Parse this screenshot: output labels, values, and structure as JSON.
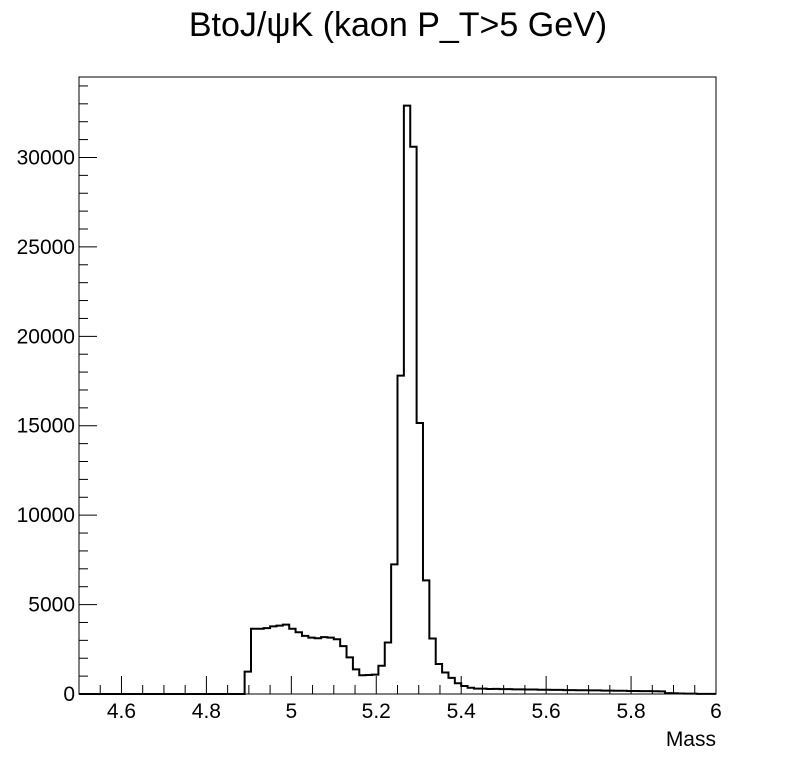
{
  "chart_data": {
    "type": "bar",
    "title": "BtoJ/ψK (kaon P_T>5 GeV)",
    "xlabel": "Mass",
    "ylabel": "",
    "xlim": [
      4.5,
      6.0
    ],
    "ylim": [
      0,
      34500
    ],
    "grid": false,
    "xticks": [
      "4.6",
      "4.8",
      "5",
      "5.2",
      "5.4",
      "5.6",
      "5.8",
      "6"
    ],
    "yticks": [
      "0",
      "5000",
      "10000",
      "15000",
      "20000",
      "25000",
      "30000"
    ],
    "bin_width": 0.015,
    "x_start": 4.5,
    "values": [
      0,
      0,
      0,
      0,
      0,
      0,
      0,
      0,
      0,
      0,
      0,
      0,
      0,
      0,
      0,
      0,
      0,
      0,
      0,
      0,
      0,
      0,
      0,
      0,
      0,
      0,
      1250,
      3650,
      3650,
      3680,
      3780,
      3820,
      3880,
      3650,
      3450,
      3250,
      3150,
      3120,
      3180,
      3150,
      3060,
      2680,
      2050,
      1380,
      1050,
      1060,
      1080,
      1580,
      2880,
      7250,
      17800,
      32900,
      30600,
      15150,
      6350,
      3100,
      1680,
      1200,
      900,
      600,
      450,
      350,
      300,
      300,
      280,
      290,
      270,
      270,
      260,
      260,
      250,
      250,
      240,
      240,
      230,
      230,
      220,
      220,
      210,
      210,
      200,
      200,
      190,
      190,
      180,
      180,
      170,
      170,
      160,
      160,
      155,
      150,
      50,
      40,
      30,
      20,
      20,
      10,
      10,
      10
    ],
    "series": [
      {
        "name": "",
        "values": []
      }
    ]
  }
}
